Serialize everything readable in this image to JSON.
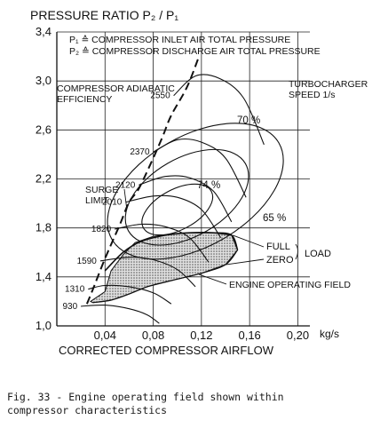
{
  "chart_data": {
    "type": "line",
    "title": "PRESSURE RATIO P₂ / P₁",
    "xlabel": "CORRECTED COMPRESSOR AIRFLOW",
    "x_unit": "kg/s",
    "xlim": [
      0.0,
      0.21
    ],
    "ylim": [
      1.0,
      3.4
    ],
    "x_ticks": [
      0.04,
      0.08,
      0.12,
      0.16,
      0.2
    ],
    "x_tick_labels": [
      "0,04",
      "0,08",
      "0,12",
      "0,16",
      "0,20"
    ],
    "y_ticks": [
      1.0,
      1.4,
      1.8,
      2.2,
      2.6,
      3.0,
      3.4
    ],
    "y_tick_labels": [
      "1,0",
      "1,4",
      "1,8",
      "2,2",
      "2,6",
      "3,0",
      "3,4"
    ],
    "grid": true,
    "legend_lines": [
      "P₁ ≙ COMPRESSOR INLET AIR TOTAL PRESSURE",
      "P₂ ≙ COMPRESSOR DISCHARGE AIR TOTAL PRESSURE"
    ],
    "surge_limit": {
      "label": "SURGE LIMIT",
      "x": [
        0.025,
        0.03,
        0.04,
        0.052,
        0.06,
        0.068,
        0.08,
        0.088,
        0.095,
        0.108,
        0.118
      ],
      "y": [
        1.18,
        1.3,
        1.55,
        1.82,
        2.01,
        2.12,
        2.37,
        2.55,
        2.72,
        2.95,
        3.2
      ]
    },
    "speed_lines_label": "TURBOCHARGER SPEED 1/s",
    "speed_lines": [
      {
        "name": "930",
        "x": [
          0.02,
          0.04,
          0.06,
          0.075,
          0.085
        ],
        "y": [
          1.16,
          1.17,
          1.14,
          1.09,
          1.02
        ]
      },
      {
        "name": "1310",
        "x": [
          0.026,
          0.04,
          0.06,
          0.08,
          0.095
        ],
        "y": [
          1.3,
          1.33,
          1.32,
          1.27,
          1.18
        ]
      },
      {
        "name": "1590",
        "x": [
          0.036,
          0.06,
          0.08,
          0.1,
          0.115
        ],
        "y": [
          1.53,
          1.56,
          1.54,
          1.46,
          1.32
        ]
      },
      {
        "name": "1820",
        "x": [
          0.048,
          0.07,
          0.09,
          0.11,
          0.126
        ],
        "y": [
          1.79,
          1.83,
          1.81,
          1.72,
          1.52
        ]
      },
      {
        "name": "2010",
        "x": [
          0.057,
          0.08,
          0.1,
          0.12,
          0.136
        ],
        "y": [
          2.01,
          2.06,
          2.05,
          1.95,
          1.72
        ]
      },
      {
        "name": "2120",
        "x": [
          0.068,
          0.09,
          0.11,
          0.13,
          0.145
        ],
        "y": [
          2.15,
          2.22,
          2.21,
          2.1,
          1.85
        ]
      },
      {
        "name": "2370",
        "x": [
          0.08,
          0.1,
          0.12,
          0.14,
          0.157
        ],
        "y": [
          2.42,
          2.52,
          2.5,
          2.37,
          2.05
        ]
      },
      {
        "name": "2550",
        "x": [
          0.097,
          0.115,
          0.135,
          0.155,
          0.172
        ],
        "y": [
          2.88,
          3.04,
          3.02,
          2.86,
          2.48
        ]
      }
    ],
    "efficiency_islands": [
      {
        "name": "74 %",
        "cx": 0.1,
        "cy": 1.95,
        "rx": 0.032,
        "ry": 0.3,
        "rot": -28
      },
      {
        "name": "70 %",
        "cx": 0.108,
        "cy": 2.05,
        "rx": 0.056,
        "ry": 0.58,
        "rot": -30
      },
      {
        "name": "65 %",
        "cx": 0.115,
        "cy": 2.1,
        "rx": 0.08,
        "ry": 0.82,
        "rot": -30
      }
    ],
    "efficiency_label": "COMPRESSOR ADIABATIC EFFICIENCY",
    "efficiency_values": [
      "74 %",
      "70 %",
      "65 %"
    ],
    "engine_operating_field": {
      "label": "ENGINE OPERATING FIELD",
      "x": [
        0.028,
        0.04,
        0.045,
        0.055,
        0.065,
        0.08,
        0.095,
        0.11,
        0.13,
        0.145,
        0.15,
        0.14,
        0.12,
        0.095,
        0.075,
        0.06,
        0.045,
        0.03,
        0.028
      ],
      "y": [
        1.2,
        1.28,
        1.45,
        1.58,
        1.68,
        1.73,
        1.75,
        1.76,
        1.76,
        1.74,
        1.62,
        1.5,
        1.43,
        1.37,
        1.32,
        1.26,
        1.21,
        1.19,
        1.2
      ]
    },
    "load_lines": {
      "label": "LOAD",
      "full": {
        "name": "FULL",
        "x": [
          0.04,
          0.055,
          0.07,
          0.09,
          0.11,
          0.13,
          0.145,
          0.15
        ],
        "y": [
          1.45,
          1.6,
          1.69,
          1.74,
          1.76,
          1.76,
          1.74,
          1.62
        ]
      },
      "zero": {
        "name": "ZERO",
        "x": [
          0.03,
          0.045,
          0.06,
          0.075,
          0.095,
          0.12,
          0.14,
          0.15
        ],
        "y": [
          1.19,
          1.21,
          1.26,
          1.32,
          1.37,
          1.43,
          1.5,
          1.62
        ]
      }
    }
  },
  "figure_caption": [
    "Fig. 33 - Engine operating field shown within",
    "compressor characteristics"
  ]
}
